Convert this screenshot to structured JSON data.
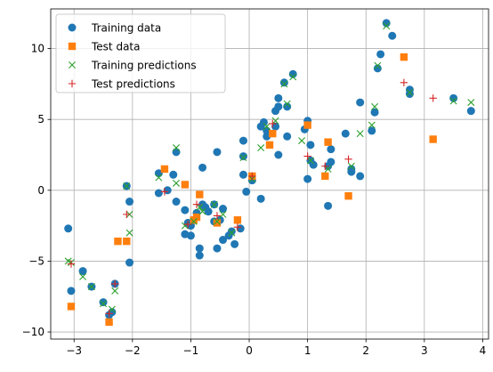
{
  "chart_data": {
    "type": "scatter",
    "title": "",
    "xlabel": "",
    "ylabel": "",
    "xlim": [
      -3.4,
      4.1
    ],
    "ylim": [
      -10.5,
      12.8
    ],
    "x_ticks": [
      -3,
      -2,
      -1,
      0,
      1,
      2,
      3,
      4
    ],
    "y_ticks": [
      -10,
      -5,
      0,
      5,
      10
    ],
    "x_tick_labels": [
      "−3",
      "−2",
      "−1",
      "0",
      "1",
      "2",
      "3",
      "4"
    ],
    "y_tick_labels": [
      "−10",
      "−5",
      "0",
      "5",
      "10"
    ],
    "grid": true,
    "legend_position": "top-left",
    "series": [
      {
        "name": "Training data",
        "marker": "circle",
        "color": "#1f77b4",
        "points": [
          [
            -3.1,
            -2.7
          ],
          [
            -3.05,
            -7.1
          ],
          [
            -2.85,
            -5.7
          ],
          [
            -2.7,
            -6.8
          ],
          [
            -2.5,
            -7.9
          ],
          [
            -2.4,
            -8.8
          ],
          [
            -2.35,
            -8.6
          ],
          [
            -2.3,
            -6.6
          ],
          [
            -2.1,
            0.3
          ],
          [
            -2.05,
            -0.8
          ],
          [
            -2.05,
            -5.1
          ],
          [
            -1.55,
            1.2
          ],
          [
            -1.55,
            -0.2
          ],
          [
            -1.4,
            0.0
          ],
          [
            -1.3,
            1.1
          ],
          [
            -1.25,
            2.7
          ],
          [
            -1.25,
            -0.8
          ],
          [
            -1.1,
            -1.4
          ],
          [
            -1.1,
            -3.1
          ],
          [
            -1.05,
            -2.3
          ],
          [
            -1.0,
            -3.2
          ],
          [
            -1.0,
            -2.5
          ],
          [
            -0.95,
            -2.1
          ],
          [
            -0.9,
            -1.6
          ],
          [
            -0.85,
            -4.6
          ],
          [
            -0.85,
            -4.1
          ],
          [
            -0.8,
            1.6
          ],
          [
            -0.8,
            -1.0
          ],
          [
            -0.75,
            -1.2
          ],
          [
            -0.7,
            -1.5
          ],
          [
            -0.6,
            -1.0
          ],
          [
            -0.6,
            -2.2
          ],
          [
            -0.55,
            2.7
          ],
          [
            -0.55,
            -4.1
          ],
          [
            -0.5,
            -2.1
          ],
          [
            -0.45,
            -1.3
          ],
          [
            -0.45,
            -3.5
          ],
          [
            -0.35,
            -3.2
          ],
          [
            -0.3,
            -2.9
          ],
          [
            -0.25,
            -3.8
          ],
          [
            -0.15,
            -2.7
          ],
          [
            -0.1,
            3.5
          ],
          [
            -0.1,
            1.1
          ],
          [
            -0.1,
            2.4
          ],
          [
            -0.05,
            -0.1
          ],
          [
            0.05,
            0.7
          ],
          [
            0.2,
            4.5
          ],
          [
            0.2,
            -0.6
          ],
          [
            0.25,
            4.8
          ],
          [
            0.3,
            3.8
          ],
          [
            0.3,
            4.2
          ],
          [
            0.45,
            5.6
          ],
          [
            0.45,
            4.5
          ],
          [
            0.5,
            5.9
          ],
          [
            0.5,
            6.5
          ],
          [
            0.5,
            2.5
          ],
          [
            0.6,
            7.6
          ],
          [
            0.65,
            5.9
          ],
          [
            0.65,
            3.8
          ],
          [
            0.75,
            8.2
          ],
          [
            0.95,
            4.3
          ],
          [
            1.0,
            0.8
          ],
          [
            1.0,
            4.9
          ],
          [
            1.05,
            3.2
          ],
          [
            1.05,
            2.1
          ],
          [
            1.1,
            1.8
          ],
          [
            1.35,
            1.7
          ],
          [
            1.35,
            -1.1
          ],
          [
            1.4,
            2.0
          ],
          [
            1.4,
            2.9
          ],
          [
            1.65,
            4.0
          ],
          [
            1.75,
            1.5
          ],
          [
            1.75,
            1.3
          ],
          [
            1.9,
            6.2
          ],
          [
            1.9,
            1.0
          ],
          [
            2.1,
            4.2
          ],
          [
            2.15,
            5.5
          ],
          [
            2.2,
            8.6
          ],
          [
            2.25,
            9.6
          ],
          [
            2.35,
            11.8
          ],
          [
            2.45,
            10.9
          ],
          [
            2.75,
            6.8
          ],
          [
            2.75,
            7.1
          ],
          [
            3.5,
            6.5
          ],
          [
            3.8,
            5.6
          ]
        ]
      },
      {
        "name": "Test data",
        "marker": "square",
        "color": "#ff7f0e",
        "points": [
          [
            -3.05,
            -8.2
          ],
          [
            -2.4,
            -9.3
          ],
          [
            -2.25,
            -3.6
          ],
          [
            -2.1,
            -3.6
          ],
          [
            -1.45,
            1.5
          ],
          [
            -1.1,
            0.4
          ],
          [
            -0.95,
            -2.1
          ],
          [
            -0.9,
            -1.9
          ],
          [
            -0.85,
            -0.3
          ],
          [
            -0.55,
            -2.3
          ],
          [
            -0.2,
            -2.1
          ],
          [
            0.05,
            1.0
          ],
          [
            0.35,
            3.2
          ],
          [
            0.4,
            4.0
          ],
          [
            1.0,
            4.6
          ],
          [
            1.3,
            1.0
          ],
          [
            1.35,
            3.4
          ],
          [
            1.7,
            -0.4
          ],
          [
            2.65,
            9.4
          ],
          [
            3.15,
            3.6
          ]
        ]
      },
      {
        "name": "Training predictions",
        "marker": "x",
        "color": "#2ca02c",
        "points": [
          [
            -3.1,
            -5.0
          ],
          [
            -3.05,
            -5.1
          ],
          [
            -2.85,
            -6.1
          ],
          [
            -2.7,
            -6.8
          ],
          [
            -2.5,
            -8.0
          ],
          [
            -2.35,
            -8.4
          ],
          [
            -2.3,
            -7.1
          ],
          [
            -2.1,
            0.3
          ],
          [
            -2.05,
            -1.7
          ],
          [
            -2.05,
            -3.0
          ],
          [
            -1.55,
            0.9
          ],
          [
            -1.25,
            3.0
          ],
          [
            -1.25,
            0.5
          ],
          [
            -1.1,
            -2.5
          ],
          [
            -0.95,
            -2.2
          ],
          [
            -0.85,
            -1.2
          ],
          [
            -0.8,
            -1.5
          ],
          [
            -0.6,
            -1.0
          ],
          [
            -0.55,
            -2.2
          ],
          [
            -0.45,
            -1.7
          ],
          [
            -0.3,
            -3.0
          ],
          [
            -0.1,
            2.3
          ],
          [
            0.05,
            0.8
          ],
          [
            0.2,
            3.0
          ],
          [
            0.3,
            4.5
          ],
          [
            0.45,
            4.9
          ],
          [
            0.6,
            7.5
          ],
          [
            0.65,
            6.1
          ],
          [
            0.75,
            8.0
          ],
          [
            0.9,
            3.5
          ],
          [
            1.05,
            2.1
          ],
          [
            1.35,
            1.5
          ],
          [
            1.75,
            1.7
          ],
          [
            1.9,
            4.0
          ],
          [
            2.1,
            4.6
          ],
          [
            2.15,
            5.9
          ],
          [
            2.2,
            8.8
          ],
          [
            2.35,
            11.6
          ],
          [
            2.75,
            6.9
          ],
          [
            3.5,
            6.3
          ],
          [
            3.8,
            6.2
          ]
        ]
      },
      {
        "name": "Test predictions",
        "marker": "plus",
        "color": "#d62728",
        "points": [
          [
            -3.05,
            -5.2
          ],
          [
            -2.4,
            -8.7
          ],
          [
            -2.3,
            -6.6
          ],
          [
            -2.1,
            -1.7
          ],
          [
            -1.45,
            -0.1
          ],
          [
            -1.05,
            -2.4
          ],
          [
            -0.9,
            -1.0
          ],
          [
            -0.55,
            -1.8
          ],
          [
            -0.2,
            -2.6
          ],
          [
            0.05,
            1.0
          ],
          [
            0.4,
            4.7
          ],
          [
            1.0,
            2.4
          ],
          [
            1.3,
            1.7
          ],
          [
            1.7,
            2.2
          ],
          [
            2.65,
            7.6
          ],
          [
            3.15,
            6.5
          ]
        ]
      }
    ]
  }
}
